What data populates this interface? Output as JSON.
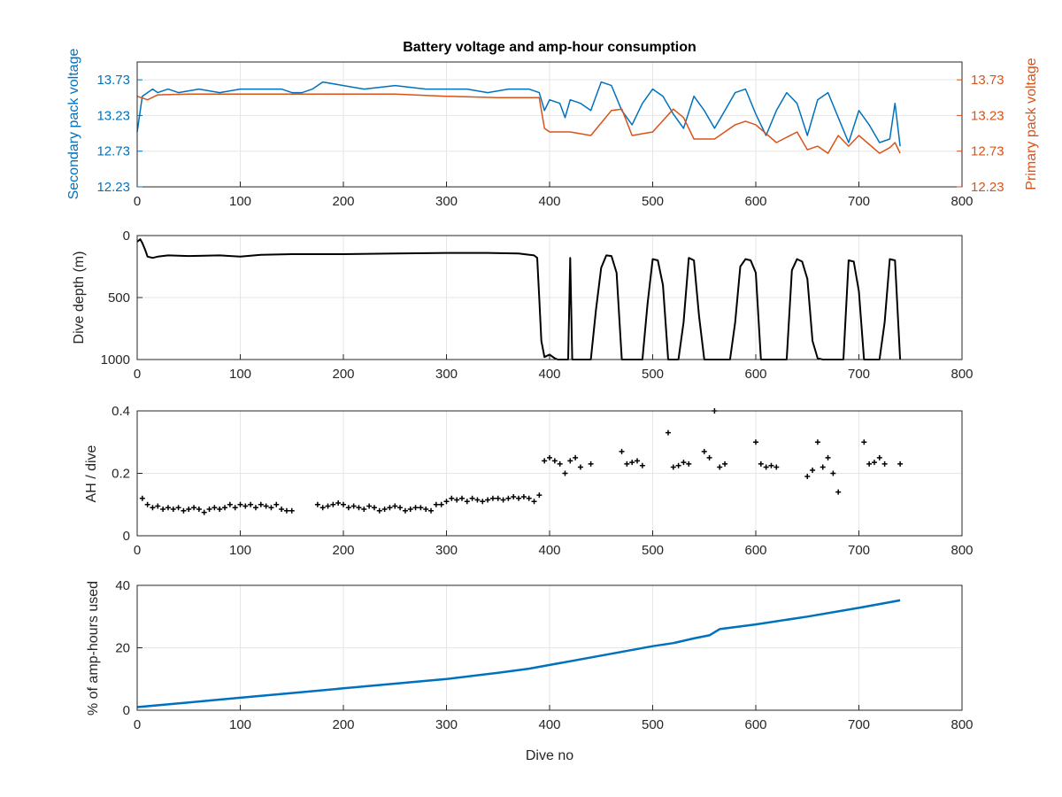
{
  "chart_data": [
    {
      "type": "line",
      "title": "Battery voltage and amp-hour consumption",
      "xlim": [
        0,
        800
      ],
      "xticks": [
        "0",
        "100",
        "200",
        "300",
        "400",
        "500",
        "600",
        "700",
        "800"
      ],
      "xlabel": "",
      "grid": true,
      "left_axis": {
        "label": "Secondary pack voltage",
        "color": "#0072BD",
        "ylim": [
          12.23,
          13.98
        ],
        "ticks": [
          "12.23",
          "12.73",
          "13.23",
          "13.73"
        ]
      },
      "right_axis": {
        "label": "Primary pack voltage",
        "color": "#D95319",
        "ylim": [
          12.23,
          13.98
        ],
        "ticks": [
          "12.23",
          "12.73",
          "13.23",
          "13.73"
        ]
      },
      "series": [
        {
          "axis": "left",
          "color": "#0072BD",
          "x": [
            0,
            5,
            10,
            15,
            20,
            30,
            40,
            60,
            80,
            100,
            120,
            140,
            150,
            160,
            170,
            180,
            200,
            220,
            250,
            280,
            300,
            320,
            340,
            360,
            380,
            390,
            395,
            400,
            410,
            415,
            420,
            430,
            440,
            450,
            460,
            470,
            480,
            490,
            500,
            510,
            520,
            530,
            540,
            550,
            560,
            570,
            580,
            590,
            600,
            610,
            620,
            630,
            640,
            650,
            660,
            670,
            680,
            690,
            700,
            710,
            720,
            730,
            735,
            740
          ],
          "y": [
            13.0,
            13.5,
            13.55,
            13.6,
            13.55,
            13.6,
            13.55,
            13.6,
            13.55,
            13.6,
            13.6,
            13.6,
            13.55,
            13.55,
            13.6,
            13.7,
            13.65,
            13.6,
            13.65,
            13.6,
            13.6,
            13.6,
            13.55,
            13.6,
            13.6,
            13.55,
            13.3,
            13.45,
            13.4,
            13.2,
            13.45,
            13.4,
            13.3,
            13.7,
            13.65,
            13.3,
            13.1,
            13.4,
            13.6,
            13.5,
            13.25,
            13.05,
            13.5,
            13.3,
            13.05,
            13.3,
            13.55,
            13.6,
            13.25,
            12.95,
            13.3,
            13.55,
            13.4,
            12.95,
            13.45,
            13.55,
            13.2,
            12.85,
            13.3,
            13.1,
            12.85,
            12.9,
            13.4,
            12.8
          ]
        },
        {
          "axis": "right",
          "color": "#D95319",
          "x": [
            0,
            10,
            20,
            50,
            100,
            150,
            200,
            250,
            300,
            350,
            380,
            390,
            395,
            400,
            420,
            440,
            460,
            470,
            480,
            500,
            520,
            530,
            540,
            560,
            580,
            590,
            600,
            620,
            640,
            650,
            660,
            670,
            680,
            690,
            700,
            720,
            730,
            735,
            740
          ],
          "y": [
            13.5,
            13.45,
            13.52,
            13.53,
            13.53,
            13.53,
            13.53,
            13.53,
            13.5,
            13.48,
            13.48,
            13.48,
            13.05,
            13.0,
            13.0,
            12.95,
            13.3,
            13.32,
            12.95,
            13.0,
            13.32,
            13.2,
            12.9,
            12.9,
            13.1,
            13.15,
            13.1,
            12.85,
            13.0,
            12.75,
            12.8,
            12.7,
            12.95,
            12.8,
            12.95,
            12.7,
            12.78,
            12.85,
            12.7
          ]
        }
      ]
    },
    {
      "type": "line",
      "xlim": [
        0,
        800
      ],
      "xticks": [
        "0",
        "100",
        "200",
        "300",
        "400",
        "500",
        "600",
        "700",
        "800"
      ],
      "ylabel": "Dive depth (m)",
      "ylim": [
        1000,
        0
      ],
      "yticks": [
        "0",
        "500",
        "1000"
      ],
      "grid": true,
      "series": [
        {
          "color": "#000000",
          "x": [
            0,
            3,
            5,
            8,
            10,
            15,
            20,
            30,
            50,
            80,
            100,
            120,
            150,
            200,
            250,
            300,
            340,
            370,
            385,
            388,
            390,
            392,
            395,
            400,
            405,
            408,
            410,
            415,
            418,
            420,
            422,
            425,
            428,
            430,
            435,
            440,
            445,
            450,
            455,
            460,
            465,
            470,
            475,
            480,
            485,
            490,
            495,
            500,
            505,
            510,
            515,
            520,
            525,
            530,
            535,
            540,
            545,
            550,
            555,
            560,
            565,
            570,
            575,
            580,
            585,
            590,
            595,
            600,
            605,
            610,
            615,
            620,
            625,
            630,
            635,
            640,
            645,
            650,
            655,
            660,
            665,
            670,
            675,
            680,
            685,
            690,
            695,
            700,
            705,
            710,
            715,
            720,
            725,
            730,
            735,
            740
          ],
          "y": [
            50,
            30,
            60,
            120,
            170,
            180,
            170,
            160,
            165,
            160,
            170,
            155,
            150,
            150,
            145,
            140,
            140,
            145,
            160,
            180,
            500,
            850,
            980,
            960,
            990,
            1000,
            1000,
            1000,
            1000,
            180,
            1000,
            1000,
            1000,
            1000,
            1000,
            1000,
            600,
            260,
            160,
            165,
            300,
            1000,
            1000,
            1000,
            1000,
            1000,
            550,
            190,
            200,
            400,
            1000,
            1000,
            1000,
            700,
            180,
            200,
            650,
            1000,
            1000,
            1000,
            1000,
            1000,
            1000,
            700,
            250,
            190,
            200,
            300,
            1000,
            1000,
            1000,
            1000,
            1000,
            1000,
            280,
            190,
            210,
            350,
            850,
            990,
            1000,
            1000,
            1000,
            1000,
            1000,
            200,
            210,
            450,
            1000,
            1000,
            1000,
            1000,
            700,
            190,
            200,
            1000
          ]
        }
      ]
    },
    {
      "type": "scatter",
      "xlim": [
        0,
        800
      ],
      "xticks": [
        "0",
        "100",
        "200",
        "300",
        "400",
        "500",
        "600",
        "700",
        "800"
      ],
      "ylabel": "AH / dive",
      "ylim": [
        0,
        0.4
      ],
      "yticks": [
        "0",
        "0.2",
        "0.4"
      ],
      "grid": true,
      "series": [
        {
          "color": "#000000",
          "x": [
            5,
            10,
            15,
            20,
            25,
            30,
            35,
            40,
            45,
            50,
            55,
            60,
            65,
            70,
            75,
            80,
            85,
            90,
            95,
            100,
            105,
            110,
            115,
            120,
            125,
            130,
            135,
            140,
            145,
            150,
            175,
            180,
            185,
            190,
            195,
            200,
            205,
            210,
            215,
            220,
            225,
            230,
            235,
            240,
            245,
            250,
            255,
            260,
            265,
            270,
            275,
            280,
            285,
            290,
            295,
            300,
            305,
            310,
            315,
            320,
            325,
            330,
            335,
            340,
            345,
            350,
            355,
            360,
            365,
            370,
            375,
            380,
            385,
            390,
            395,
            400,
            405,
            410,
            415,
            420,
            425,
            430,
            440,
            470,
            475,
            480,
            485,
            490,
            515,
            520,
            525,
            530,
            535,
            550,
            555,
            560,
            565,
            570,
            600,
            605,
            610,
            615,
            620,
            650,
            655,
            660,
            665,
            670,
            675,
            680,
            705,
            710,
            715,
            720,
            725,
            740
          ],
          "y": [
            0.12,
            0.1,
            0.09,
            0.095,
            0.085,
            0.09,
            0.085,
            0.09,
            0.08,
            0.085,
            0.09,
            0.085,
            0.075,
            0.085,
            0.09,
            0.085,
            0.09,
            0.1,
            0.09,
            0.1,
            0.095,
            0.1,
            0.09,
            0.1,
            0.095,
            0.09,
            0.1,
            0.085,
            0.08,
            0.08,
            0.1,
            0.09,
            0.095,
            0.1,
            0.105,
            0.1,
            0.09,
            0.095,
            0.09,
            0.085,
            0.095,
            0.09,
            0.08,
            0.085,
            0.09,
            0.095,
            0.09,
            0.08,
            0.085,
            0.09,
            0.09,
            0.085,
            0.08,
            0.1,
            0.1,
            0.11,
            0.12,
            0.115,
            0.12,
            0.11,
            0.12,
            0.115,
            0.11,
            0.115,
            0.12,
            0.12,
            0.115,
            0.12,
            0.125,
            0.12,
            0.125,
            0.12,
            0.11,
            0.13,
            0.24,
            0.25,
            0.24,
            0.23,
            0.2,
            0.24,
            0.25,
            0.22,
            0.23,
            0.27,
            0.23,
            0.235,
            0.24,
            0.225,
            0.33,
            0.22,
            0.225,
            0.235,
            0.23,
            0.27,
            0.25,
            0.4,
            0.22,
            0.23,
            0.3,
            0.23,
            0.22,
            0.225,
            0.22,
            0.19,
            0.21,
            0.3,
            0.22,
            0.25,
            0.2,
            0.14,
            0.3,
            0.23,
            0.235,
            0.25,
            0.23,
            0.23
          ]
        }
      ]
    },
    {
      "type": "line",
      "xlim": [
        0,
        800
      ],
      "xticks": [
        "0",
        "100",
        "200",
        "300",
        "400",
        "500",
        "600",
        "700",
        "800"
      ],
      "xlabel": "Dive no",
      "ylabel": "% of amp-hours used",
      "ylim": [
        0,
        40
      ],
      "yticks": [
        "0",
        "20",
        "40"
      ],
      "grid": true,
      "series": [
        {
          "color": "#0072BD",
          "x": [
            0,
            50,
            100,
            150,
            200,
            250,
            300,
            350,
            380,
            400,
            450,
            500,
            520,
            540,
            555,
            560,
            565,
            600,
            650,
            700,
            740
          ],
          "y": [
            1.0,
            2.5,
            4.0,
            5.5,
            7.0,
            8.5,
            10.0,
            12.0,
            13.3,
            14.5,
            17.5,
            20.5,
            21.5,
            23.0,
            24.0,
            25.0,
            26.0,
            27.5,
            30.0,
            32.8,
            35.2
          ]
        }
      ]
    }
  ]
}
